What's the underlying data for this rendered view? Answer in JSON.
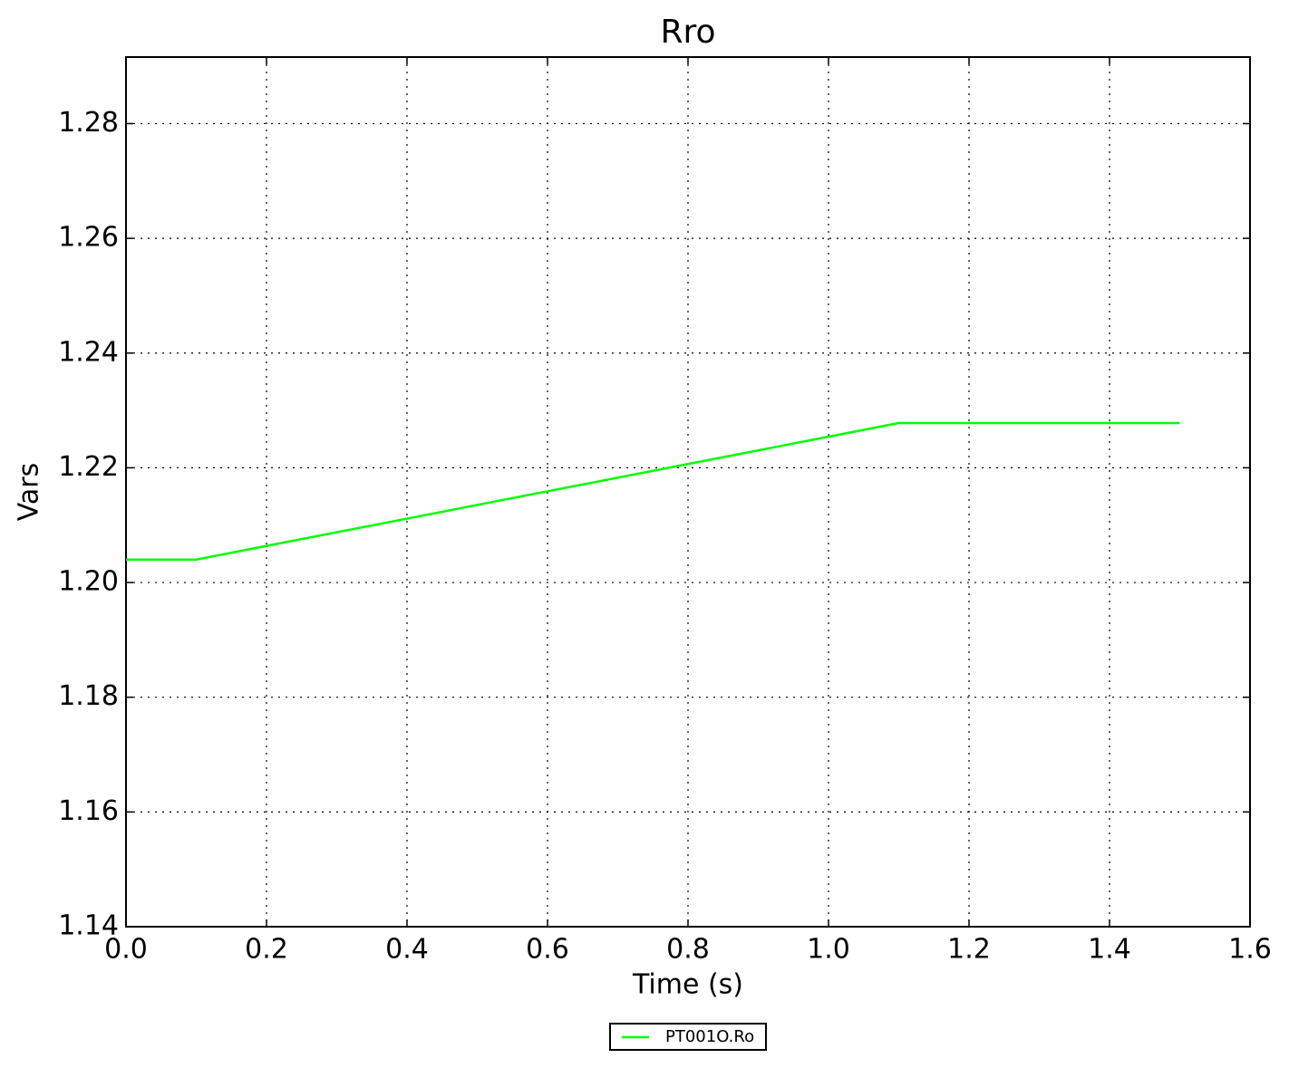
{
  "chart_data": {
    "type": "line",
    "title": "Rro",
    "xlabel": "Time (s)",
    "ylabel": "Vars",
    "x": [
      0,
      0.1,
      1.1,
      1.5
    ],
    "series": [
      {
        "name": "PT001O.Ro",
        "color": "#00ff00",
        "values": [
          1.204,
          1.204,
          1.2278,
          1.2278
        ]
      }
    ],
    "xlim": [
      0,
      1.6
    ],
    "xticks": [
      {
        "value": 0,
        "label": "0.0"
      },
      0.2,
      0.4,
      0.6,
      0.8,
      {
        "value": 1,
        "label": "1.0"
      },
      1.2,
      1.4,
      1.6
    ],
    "ylim": [
      1.14,
      1.2916
    ],
    "yticks": [
      1.14,
      1.16,
      1.18,
      {
        "value": 1.2,
        "label": "1.20"
      },
      1.22,
      1.24,
      1.26,
      1.28
    ],
    "grid": true,
    "legend": "below"
  }
}
